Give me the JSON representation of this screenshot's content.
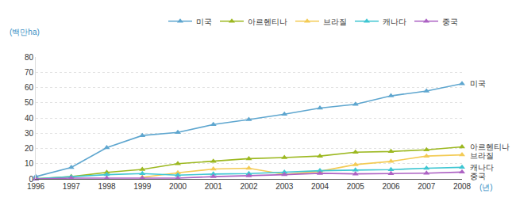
{
  "chart_data": {
    "type": "line",
    "y_label": "(백만ha)",
    "x_label": "(년)",
    "x": [
      1996,
      1997,
      1998,
      1999,
      2000,
      2001,
      2002,
      2003,
      2004,
      2005,
      2006,
      2007,
      2008
    ],
    "series": [
      {
        "name": "미국",
        "color": "#5ea6cf",
        "values": [
          1.5,
          7.5,
          20.5,
          28.5,
          30.5,
          35.7,
          39.0,
          42.5,
          46.5,
          49.0,
          54.5,
          57.7,
          62.5
        ]
      },
      {
        "name": "아르헨티나",
        "color": "#9cb820",
        "values": [
          0.1,
          1.5,
          4.3,
          6.2,
          10.0,
          11.5,
          13.3,
          14.0,
          15.0,
          17.5,
          18.0,
          19.1,
          21.0
        ]
      },
      {
        "name": "브라질",
        "color": "#f3cb55",
        "values": [
          null,
          null,
          null,
          1.0,
          4.0,
          6.5,
          7.0,
          3.0,
          5.0,
          9.4,
          11.5,
          15.0,
          15.8
        ]
      },
      {
        "name": "캐나다",
        "color": "#3ec6d2",
        "values": [
          0.1,
          1.3,
          2.8,
          3.5,
          2.5,
          3.2,
          3.5,
          4.4,
          5.4,
          5.8,
          6.1,
          7.0,
          7.6
        ]
      },
      {
        "name": "중국",
        "color": "#ac62c3",
        "values": [
          0.0,
          0.5,
          0.5,
          0.5,
          0.5,
          1.5,
          2.1,
          2.8,
          3.7,
          3.3,
          3.5,
          3.8,
          4.5
        ]
      }
    ],
    "xlim": [
      1996,
      2008
    ],
    "xticks": [
      1996,
      1997,
      1998,
      1999,
      2000,
      2001,
      2002,
      2003,
      2004,
      2005,
      2006,
      2007,
      2008
    ],
    "ylim": [
      0,
      80
    ],
    "yticks": [
      0,
      10,
      20,
      30,
      40,
      50,
      60,
      70,
      80
    ],
    "grid": true,
    "legend": "top-right",
    "marker": "triangle-up"
  }
}
